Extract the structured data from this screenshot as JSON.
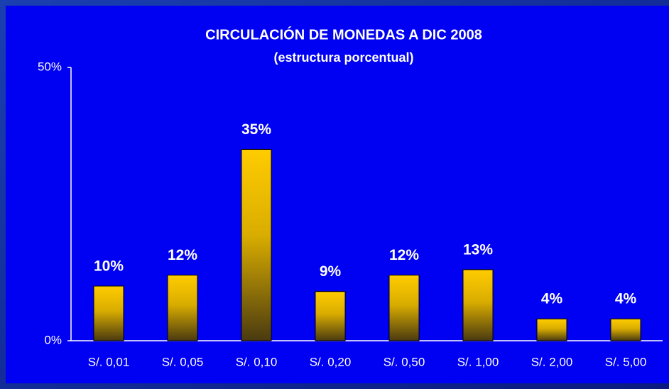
{
  "chart_data": {
    "type": "bar",
    "title": "CIRCULACIÓN DE MONEDAS A DIC 2008",
    "subtitle": "(estructura porcentual)",
    "categories": [
      "S/. 0,01",
      "S/. 0,05",
      "S/. 0,10",
      "S/. 0,20",
      "S/. 0,50",
      "S/. 1,00",
      "S/. 2,00",
      "S/. 5,00"
    ],
    "values": [
      10,
      12,
      35,
      9,
      12,
      13,
      4,
      4
    ],
    "value_labels": [
      "10%",
      "12%",
      "35%",
      "9%",
      "12%",
      "13%",
      "4%",
      "4%"
    ],
    "color": "#ffcc00",
    "ylim": [
      0,
      50
    ],
    "yticks": [
      {
        "value": 0,
        "label": "0%"
      },
      {
        "value": 50,
        "label": "50%"
      }
    ],
    "grid": false
  }
}
